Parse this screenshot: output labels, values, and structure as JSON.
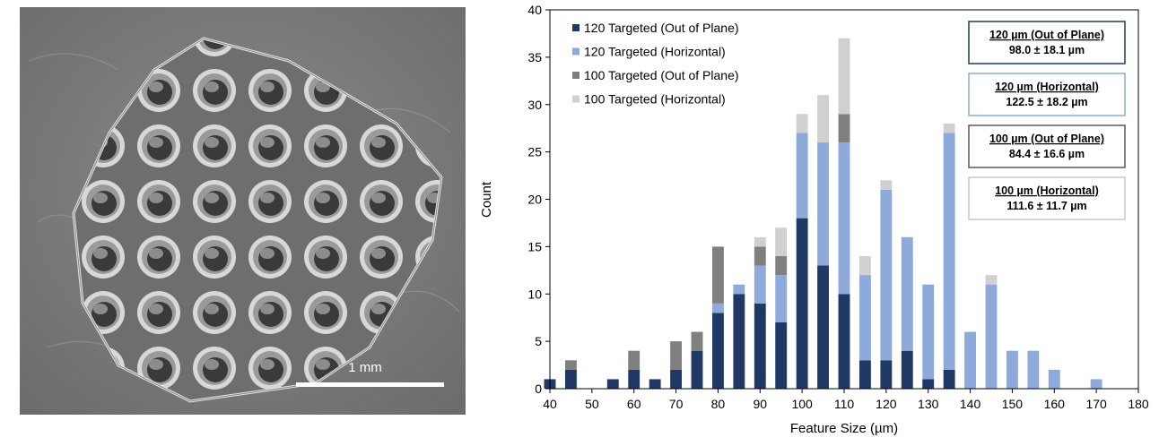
{
  "figure": {
    "scale_bar_label": "1 mm"
  },
  "chart_data": {
    "type": "bar",
    "stacked": true,
    "xlabel": "Feature Size (µm)",
    "ylabel": "Count",
    "xlim": [
      40,
      180
    ],
    "ylim": [
      0,
      40
    ],
    "xticks": [
      "40",
      "50",
      "60",
      "70",
      "80",
      "90",
      "100",
      "110",
      "120",
      "130",
      "140",
      "150",
      "160",
      "170",
      "180"
    ],
    "yticks": [
      "0",
      "5",
      "10",
      "15",
      "20",
      "25",
      "30",
      "35",
      "40"
    ],
    "legend_position": "top-left",
    "colors": {
      "oop120": "#1f3864",
      "hor120": "#8eaadb",
      "oop100": "#7f7f7f",
      "hor100": "#d0d0d0"
    },
    "x": [
      40,
      45,
      55,
      60,
      65,
      70,
      75,
      80,
      85,
      90,
      95,
      100,
      105,
      110,
      115,
      120,
      125,
      130,
      135,
      140,
      145,
      150,
      155,
      160,
      170
    ],
    "series": [
      {
        "key": "oop120",
        "name": "120 Targeted (Out of Plane)",
        "values": [
          1,
          2,
          1,
          2,
          1,
          2,
          4,
          8,
          10,
          9,
          7,
          18,
          13,
          10,
          3,
          3,
          4,
          1,
          2,
          0,
          0,
          0,
          0,
          0,
          0
        ]
      },
      {
        "key": "hor120",
        "name": "120 Targeted (Horizontal)",
        "values": [
          0,
          0,
          0,
          0,
          0,
          0,
          0,
          1,
          1,
          4,
          5,
          9,
          13,
          16,
          9,
          18,
          12,
          10,
          25,
          6,
          11,
          4,
          4,
          2,
          1
        ]
      },
      {
        "key": "oop100",
        "name": "100 Targeted (Out of Plane)",
        "values": [
          0,
          1,
          0,
          2,
          0,
          3,
          2,
          6,
          0,
          2,
          2,
          0,
          0,
          3,
          0,
          0,
          0,
          0,
          0,
          0,
          0,
          0,
          0,
          0,
          0
        ]
      },
      {
        "key": "hor100",
        "name": "100 Targeted (Horizontal)",
        "values": [
          0,
          0,
          0,
          0,
          0,
          0,
          0,
          0,
          0,
          1,
          3,
          2,
          5,
          8,
          2,
          1,
          0,
          0,
          1,
          0,
          1,
          0,
          0,
          0,
          0
        ]
      }
    ],
    "stat_boxes": [
      {
        "key": "oop120",
        "title": "120 µm (Out of Plane)",
        "value": "98.0 ± 18.1 µm"
      },
      {
        "key": "hor120",
        "title": "120 µm (Horizontal)",
        "value": "122.5 ± 18.2 µm"
      },
      {
        "key": "oop100",
        "title": "100 µm (Out of Plane)",
        "value": "84.4 ± 16.6 µm"
      },
      {
        "key": "hor100",
        "title": "100 µm (Horizontal)",
        "value": "111.6 ± 11.7 µm"
      }
    ]
  }
}
